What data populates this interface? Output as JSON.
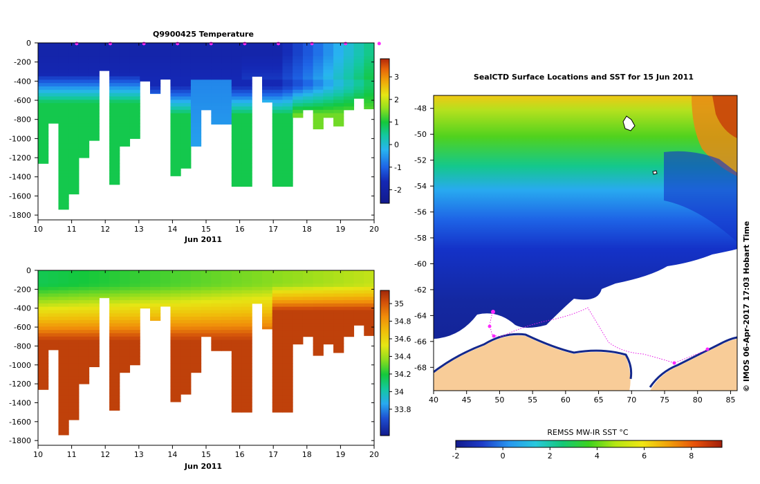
{
  "chart_data": [
    {
      "type": "heatmap",
      "title": "Q9900425  Temperature",
      "xlabel": "Jun 2011",
      "ylabel": "",
      "xlim": [
        10,
        20
      ],
      "ylim": [
        -1850,
        0
      ],
      "xticks": [
        "10",
        "11",
        "12",
        "13",
        "14",
        "15",
        "16",
        "17",
        "18",
        "19",
        "20"
      ],
      "yticks": [
        "0",
        "-200",
        "-400",
        "-600",
        "-800",
        "-1000",
        "-1200",
        "-1400",
        "-1600",
        "-1800"
      ],
      "colorbar": {
        "min": -2.6,
        "max": 3.8,
        "ticks": [
          "3",
          "2",
          "1",
          "0",
          "-1",
          "-2"
        ]
      },
      "profile_markers_x": [
        11,
        12,
        13,
        14,
        15,
        16,
        17,
        18,
        19,
        20
      ],
      "profile_max_depth": [
        1260,
        840,
        1740,
        1580,
        1200,
        1020,
        290,
        1480,
        1080,
        1000,
        400,
        530,
        380,
        1390,
        1310,
        1080,
        700,
        850,
        850,
        1500,
        1500,
        350,
        620,
        1500,
        1500,
        780,
        700,
        900,
        780,
        870,
        700,
        580,
        690
      ]
    },
    {
      "type": "heatmap",
      "title": "",
      "xlabel": "Jun 2011",
      "xlim": [
        10,
        20
      ],
      "ylim": [
        -1850,
        0
      ],
      "xticks": [
        "10",
        "11",
        "12",
        "13",
        "14",
        "15",
        "16",
        "17",
        "18",
        "19",
        "20"
      ],
      "yticks": [
        "0",
        "-200",
        "-400",
        "-600",
        "-800",
        "-1000",
        "-1200",
        "-1400",
        "-1600",
        "-1800"
      ],
      "colorbar": {
        "min": 33.5,
        "max": 35.15,
        "ticks": [
          "35",
          "34.8",
          "34.6",
          "34.4",
          "34.2",
          "34",
          "33.8"
        ]
      }
    },
    {
      "type": "heatmap",
      "title": "SealCTD Surface Locations and SST for 15 Jun 2011",
      "xlabel": "",
      "xlim": [
        40,
        86
      ],
      "ylim": [
        -69.8,
        -47
      ],
      "xticks": [
        "40",
        "45",
        "50",
        "55",
        "60",
        "65",
        "70",
        "75",
        "80",
        "85"
      ],
      "yticks": [
        "-48",
        "-50",
        "-52",
        "-54",
        "-56",
        "-58",
        "-60",
        "-62",
        "-64",
        "-66",
        "-68"
      ],
      "colorbar": {
        "label": "REMSS MW-IR SST °C",
        "min": -2,
        "max": 9.3,
        "ticks": [
          "-2",
          "0",
          "2",
          "4",
          "6",
          "8"
        ]
      },
      "credit": "© IMOS 06-Apr-2017 17:03 Hobart Time"
    }
  ]
}
